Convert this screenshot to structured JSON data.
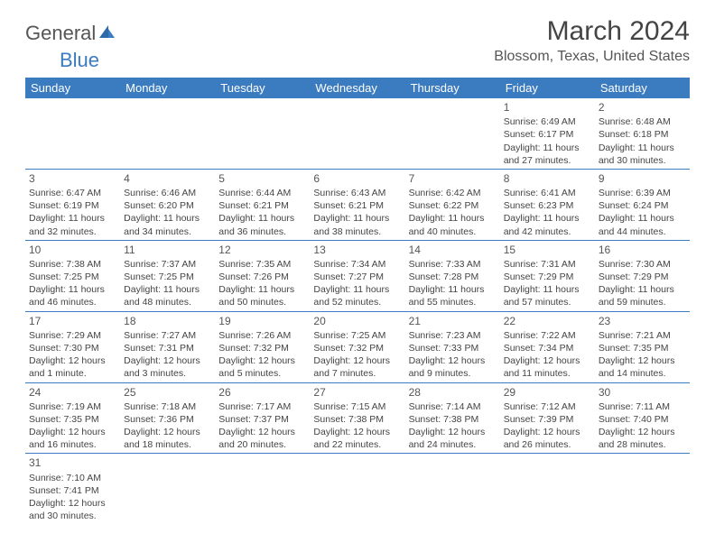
{
  "logo": {
    "general": "General",
    "blue": "Blue"
  },
  "title": "March 2024",
  "location": "Blossom, Texas, United States",
  "colors": {
    "header_bg": "#3b7bbf",
    "header_fg": "#ffffff",
    "border": "#3b7bbf",
    "text": "#444444",
    "logo_gray": "#555555",
    "logo_blue": "#3b7bbf",
    "background": "#ffffff"
  },
  "weekdays": [
    "Sunday",
    "Monday",
    "Tuesday",
    "Wednesday",
    "Thursday",
    "Friday",
    "Saturday"
  ],
  "weeks": [
    [
      null,
      null,
      null,
      null,
      null,
      {
        "n": "1",
        "sr": "Sunrise: 6:49 AM",
        "ss": "Sunset: 6:17 PM",
        "d1": "Daylight: 11 hours",
        "d2": "and 27 minutes."
      },
      {
        "n": "2",
        "sr": "Sunrise: 6:48 AM",
        "ss": "Sunset: 6:18 PM",
        "d1": "Daylight: 11 hours",
        "d2": "and 30 minutes."
      }
    ],
    [
      {
        "n": "3",
        "sr": "Sunrise: 6:47 AM",
        "ss": "Sunset: 6:19 PM",
        "d1": "Daylight: 11 hours",
        "d2": "and 32 minutes."
      },
      {
        "n": "4",
        "sr": "Sunrise: 6:46 AM",
        "ss": "Sunset: 6:20 PM",
        "d1": "Daylight: 11 hours",
        "d2": "and 34 minutes."
      },
      {
        "n": "5",
        "sr": "Sunrise: 6:44 AM",
        "ss": "Sunset: 6:21 PM",
        "d1": "Daylight: 11 hours",
        "d2": "and 36 minutes."
      },
      {
        "n": "6",
        "sr": "Sunrise: 6:43 AM",
        "ss": "Sunset: 6:21 PM",
        "d1": "Daylight: 11 hours",
        "d2": "and 38 minutes."
      },
      {
        "n": "7",
        "sr": "Sunrise: 6:42 AM",
        "ss": "Sunset: 6:22 PM",
        "d1": "Daylight: 11 hours",
        "d2": "and 40 minutes."
      },
      {
        "n": "8",
        "sr": "Sunrise: 6:41 AM",
        "ss": "Sunset: 6:23 PM",
        "d1": "Daylight: 11 hours",
        "d2": "and 42 minutes."
      },
      {
        "n": "9",
        "sr": "Sunrise: 6:39 AM",
        "ss": "Sunset: 6:24 PM",
        "d1": "Daylight: 11 hours",
        "d2": "and 44 minutes."
      }
    ],
    [
      {
        "n": "10",
        "sr": "Sunrise: 7:38 AM",
        "ss": "Sunset: 7:25 PM",
        "d1": "Daylight: 11 hours",
        "d2": "and 46 minutes."
      },
      {
        "n": "11",
        "sr": "Sunrise: 7:37 AM",
        "ss": "Sunset: 7:25 PM",
        "d1": "Daylight: 11 hours",
        "d2": "and 48 minutes."
      },
      {
        "n": "12",
        "sr": "Sunrise: 7:35 AM",
        "ss": "Sunset: 7:26 PM",
        "d1": "Daylight: 11 hours",
        "d2": "and 50 minutes."
      },
      {
        "n": "13",
        "sr": "Sunrise: 7:34 AM",
        "ss": "Sunset: 7:27 PM",
        "d1": "Daylight: 11 hours",
        "d2": "and 52 minutes."
      },
      {
        "n": "14",
        "sr": "Sunrise: 7:33 AM",
        "ss": "Sunset: 7:28 PM",
        "d1": "Daylight: 11 hours",
        "d2": "and 55 minutes."
      },
      {
        "n": "15",
        "sr": "Sunrise: 7:31 AM",
        "ss": "Sunset: 7:29 PM",
        "d1": "Daylight: 11 hours",
        "d2": "and 57 minutes."
      },
      {
        "n": "16",
        "sr": "Sunrise: 7:30 AM",
        "ss": "Sunset: 7:29 PM",
        "d1": "Daylight: 11 hours",
        "d2": "and 59 minutes."
      }
    ],
    [
      {
        "n": "17",
        "sr": "Sunrise: 7:29 AM",
        "ss": "Sunset: 7:30 PM",
        "d1": "Daylight: 12 hours",
        "d2": "and 1 minute."
      },
      {
        "n": "18",
        "sr": "Sunrise: 7:27 AM",
        "ss": "Sunset: 7:31 PM",
        "d1": "Daylight: 12 hours",
        "d2": "and 3 minutes."
      },
      {
        "n": "19",
        "sr": "Sunrise: 7:26 AM",
        "ss": "Sunset: 7:32 PM",
        "d1": "Daylight: 12 hours",
        "d2": "and 5 minutes."
      },
      {
        "n": "20",
        "sr": "Sunrise: 7:25 AM",
        "ss": "Sunset: 7:32 PM",
        "d1": "Daylight: 12 hours",
        "d2": "and 7 minutes."
      },
      {
        "n": "21",
        "sr": "Sunrise: 7:23 AM",
        "ss": "Sunset: 7:33 PM",
        "d1": "Daylight: 12 hours",
        "d2": "and 9 minutes."
      },
      {
        "n": "22",
        "sr": "Sunrise: 7:22 AM",
        "ss": "Sunset: 7:34 PM",
        "d1": "Daylight: 12 hours",
        "d2": "and 11 minutes."
      },
      {
        "n": "23",
        "sr": "Sunrise: 7:21 AM",
        "ss": "Sunset: 7:35 PM",
        "d1": "Daylight: 12 hours",
        "d2": "and 14 minutes."
      }
    ],
    [
      {
        "n": "24",
        "sr": "Sunrise: 7:19 AM",
        "ss": "Sunset: 7:35 PM",
        "d1": "Daylight: 12 hours",
        "d2": "and 16 minutes."
      },
      {
        "n": "25",
        "sr": "Sunrise: 7:18 AM",
        "ss": "Sunset: 7:36 PM",
        "d1": "Daylight: 12 hours",
        "d2": "and 18 minutes."
      },
      {
        "n": "26",
        "sr": "Sunrise: 7:17 AM",
        "ss": "Sunset: 7:37 PM",
        "d1": "Daylight: 12 hours",
        "d2": "and 20 minutes."
      },
      {
        "n": "27",
        "sr": "Sunrise: 7:15 AM",
        "ss": "Sunset: 7:38 PM",
        "d1": "Daylight: 12 hours",
        "d2": "and 22 minutes."
      },
      {
        "n": "28",
        "sr": "Sunrise: 7:14 AM",
        "ss": "Sunset: 7:38 PM",
        "d1": "Daylight: 12 hours",
        "d2": "and 24 minutes."
      },
      {
        "n": "29",
        "sr": "Sunrise: 7:12 AM",
        "ss": "Sunset: 7:39 PM",
        "d1": "Daylight: 12 hours",
        "d2": "and 26 minutes."
      },
      {
        "n": "30",
        "sr": "Sunrise: 7:11 AM",
        "ss": "Sunset: 7:40 PM",
        "d1": "Daylight: 12 hours",
        "d2": "and 28 minutes."
      }
    ],
    [
      {
        "n": "31",
        "sr": "Sunrise: 7:10 AM",
        "ss": "Sunset: 7:41 PM",
        "d1": "Daylight: 12 hours",
        "d2": "and 30 minutes."
      },
      null,
      null,
      null,
      null,
      null,
      null
    ]
  ]
}
